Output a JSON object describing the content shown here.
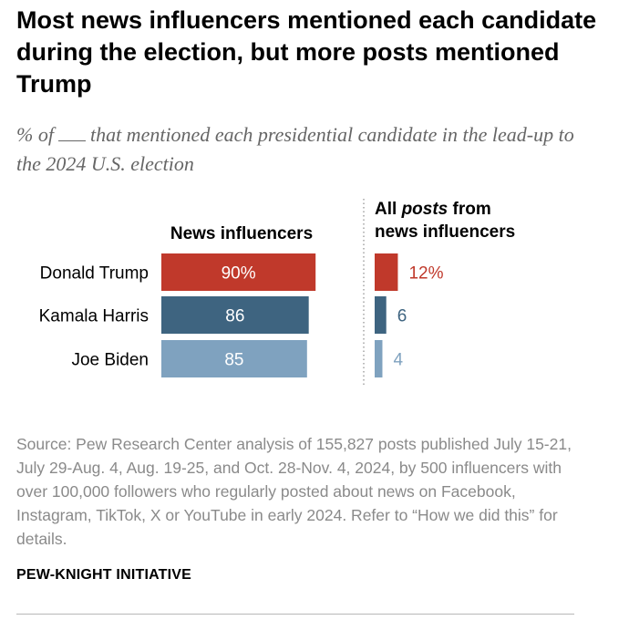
{
  "chart_data": {
    "type": "bar",
    "title": "Most news influencers mentioned each candidate during the election, but more posts mentioned Trump",
    "subtitle": {
      "prefix": "% of",
      "suffix": "that mentioned each presidential candidate in the lead-up to the 2024 U.S. election"
    },
    "categories": [
      "Donald Trump",
      "Kamala Harris",
      "Joe Biden"
    ],
    "colors": [
      "#c0392b",
      "#3e6480",
      "#7fa2bf"
    ],
    "series": [
      {
        "name": "News influencers",
        "values": [
          90,
          86,
          85
        ],
        "labels": [
          "90%",
          "86",
          "85"
        ],
        "xlim": [
          0,
          100
        ]
      },
      {
        "name": "All posts from news influencers",
        "name_parts": [
          "All ",
          "posts",
          " from",
          "news influencers"
        ],
        "values": [
          12,
          6,
          4
        ],
        "labels": [
          "12%",
          "6",
          "4"
        ],
        "xlim": [
          0,
          100
        ]
      }
    ]
  },
  "source": "Source: Pew Research Center analysis of 155,827 posts published July 15-21, July 29-Aug. 4, Aug. 19-25, and Oct. 28-Nov. 4, 2024, by 500 influencers with over 100,000 followers who regularly posted about news on Facebook, Instagram, TikTok, X or YouTube in early 2024. Refer to “How we did this” for details.",
  "brand": "PEW-KNIGHT INITIATIVE"
}
